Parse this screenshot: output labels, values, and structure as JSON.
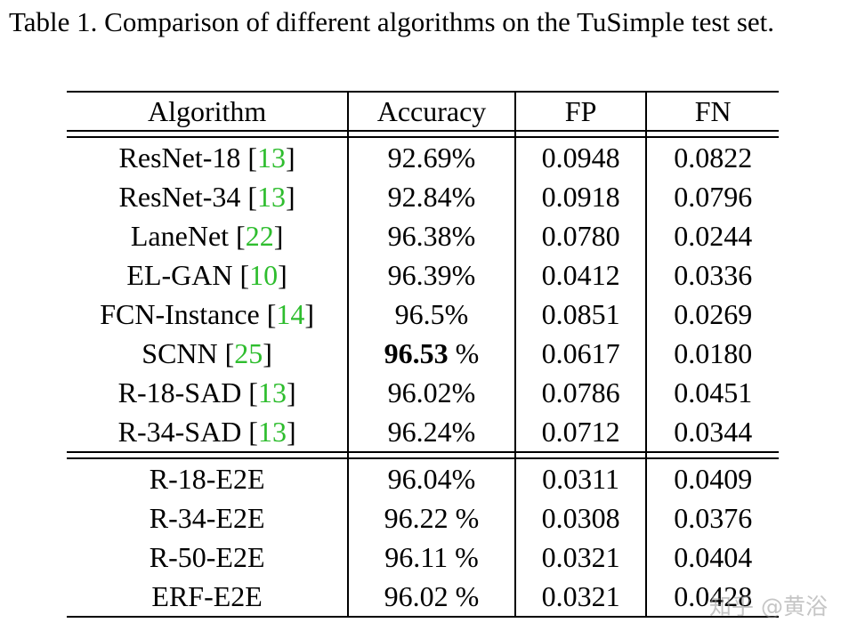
{
  "caption": "Table 1. Comparison of different algorithms on the TuSimple test set.",
  "headers": {
    "algorithm": "Algorithm",
    "accuracy": "Accuracy",
    "fp": "FP",
    "fn": "FN"
  },
  "rows_group1": [
    {
      "name": "ResNet-18",
      "cite": "13",
      "accuracy": "92.69%",
      "fp": "0.0948",
      "fn": "0.0822"
    },
    {
      "name": "ResNet-34",
      "cite": "13",
      "accuracy": "92.84%",
      "fp": "0.0918",
      "fn": "0.0796"
    },
    {
      "name": "LaneNet",
      "cite": "22",
      "accuracy": "96.38%",
      "fp": "0.0780",
      "fn": "0.0244"
    },
    {
      "name": "EL-GAN",
      "cite": "10",
      "accuracy": "96.39%",
      "fp": "0.0412",
      "fn": "0.0336"
    },
    {
      "name": "FCN-Instance",
      "cite": "14",
      "accuracy": "96.5%",
      "fp": "0.0851",
      "fn": "0.0269"
    },
    {
      "name": "SCNN",
      "cite": "25",
      "accuracy_num": "96.53",
      "accuracy_unit": " %",
      "fp": "0.0617",
      "fn": "0.0180"
    },
    {
      "name": "R-18-SAD",
      "cite": "13",
      "accuracy": "96.02%",
      "fp": "0.0786",
      "fn": "0.0451"
    },
    {
      "name": "R-34-SAD",
      "cite": "13",
      "accuracy": "96.24%",
      "fp": "0.0712",
      "fn": "0.0344"
    }
  ],
  "rows_group2": [
    {
      "name": "R-18-E2E",
      "accuracy": "96.04%",
      "fp": "0.0311",
      "fn": "0.0409"
    },
    {
      "name": "R-34-E2E",
      "accuracy": "96.22 %",
      "fp": "0.0308",
      "fn": "0.0376"
    },
    {
      "name": "R-50-E2E",
      "accuracy": "96.11 %",
      "fp": "0.0321",
      "fn": "0.0404"
    },
    {
      "name": "ERF-E2E",
      "accuracy": "96.02 %",
      "fp": "0.0321",
      "fn": "0.0428"
    }
  ],
  "watermark": "知乎 @黄浴",
  "colors": {
    "citation": "#2ebd2e",
    "text": "#000000",
    "watermark": "#969696"
  }
}
